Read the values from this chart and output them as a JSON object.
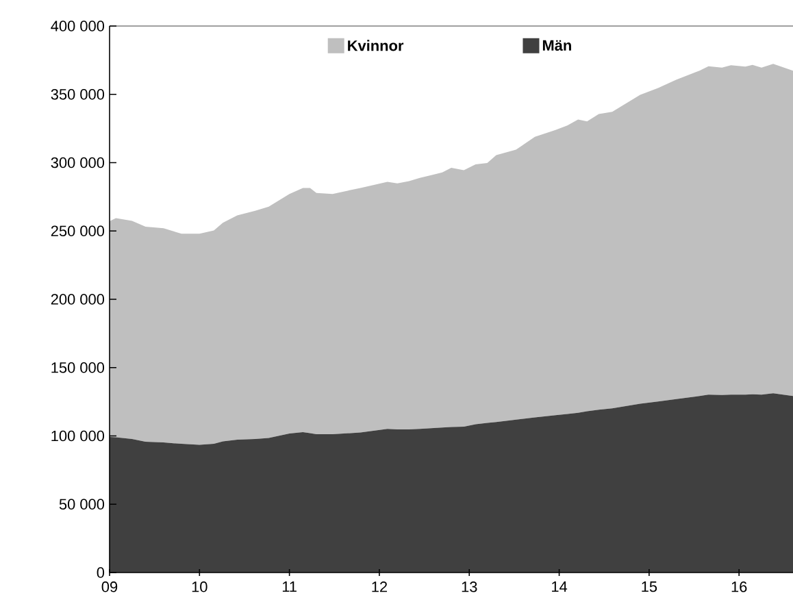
{
  "chart_data": {
    "type": "area",
    "stacked": true,
    "x": [
      9.0,
      9.07,
      9.25,
      9.4,
      9.6,
      9.8,
      10.0,
      10.16,
      10.26,
      10.42,
      10.62,
      10.77,
      11.0,
      11.15,
      11.23,
      11.3,
      11.48,
      11.79,
      12.09,
      12.2,
      12.33,
      12.45,
      12.7,
      12.8,
      12.94,
      13.07,
      13.2,
      13.3,
      13.52,
      13.73,
      13.96,
      14.09,
      14.21,
      14.31,
      14.44,
      14.59,
      14.9,
      15.1,
      15.3,
      15.56,
      15.66,
      15.81,
      15.91,
      16.07,
      16.15,
      16.25,
      16.38,
      16.6
    ],
    "series": [
      {
        "name": "Män",
        "color": "#404040",
        "values": [
          99200,
          99000,
          97800,
          95800,
          95200,
          94200,
          93500,
          94200,
          96000,
          97200,
          97800,
          98500,
          101800,
          102800,
          102000,
          101200,
          101200,
          102500,
          105200,
          104800,
          104800,
          105200,
          106200,
          106500,
          106800,
          108500,
          109500,
          110200,
          111900,
          113500,
          115200,
          116000,
          116900,
          118000,
          119200,
          120200,
          123500,
          125200,
          126900,
          129200,
          130200,
          130000,
          130200,
          130200,
          130500,
          130200,
          131200,
          129200
        ]
      },
      {
        "name": "Kvinnor",
        "color": "#bfbfbf",
        "values": [
          157900,
          160400,
          159600,
          157300,
          156800,
          153800,
          154500,
          156200,
          160000,
          164200,
          167000,
          169300,
          175300,
          178700,
          179500,
          176600,
          175900,
          179000,
          180800,
          180000,
          181700,
          183600,
          186600,
          189700,
          187700,
          190300,
          190300,
          195300,
          197600,
          205400,
          208700,
          211200,
          214700,
          212200,
          216400,
          217000,
          226100,
          229400,
          233700,
          238100,
          240400,
          239600,
          241100,
          240100,
          241100,
          239400,
          241100,
          238100
        ]
      }
    ],
    "xlim": [
      9,
      16.6
    ],
    "xticks": [
      {
        "value": 9,
        "label": "09"
      },
      10,
      11,
      12,
      13,
      14,
      15,
      16
    ],
    "ylim": [
      0,
      400000
    ],
    "yticks": [
      0,
      {
        "value": 50000,
        "label": "50 000"
      },
      {
        "value": 100000,
        "label": "100 000"
      },
      {
        "value": 150000,
        "label": "150 000"
      },
      {
        "value": 200000,
        "label": "200 000"
      },
      {
        "value": 250000,
        "label": "250 000"
      },
      {
        "value": 300000,
        "label": "300 000"
      },
      {
        "value": 350000,
        "label": "350 000"
      },
      {
        "value": 400000,
        "label": "400 000"
      }
    ],
    "legend": "top"
  }
}
